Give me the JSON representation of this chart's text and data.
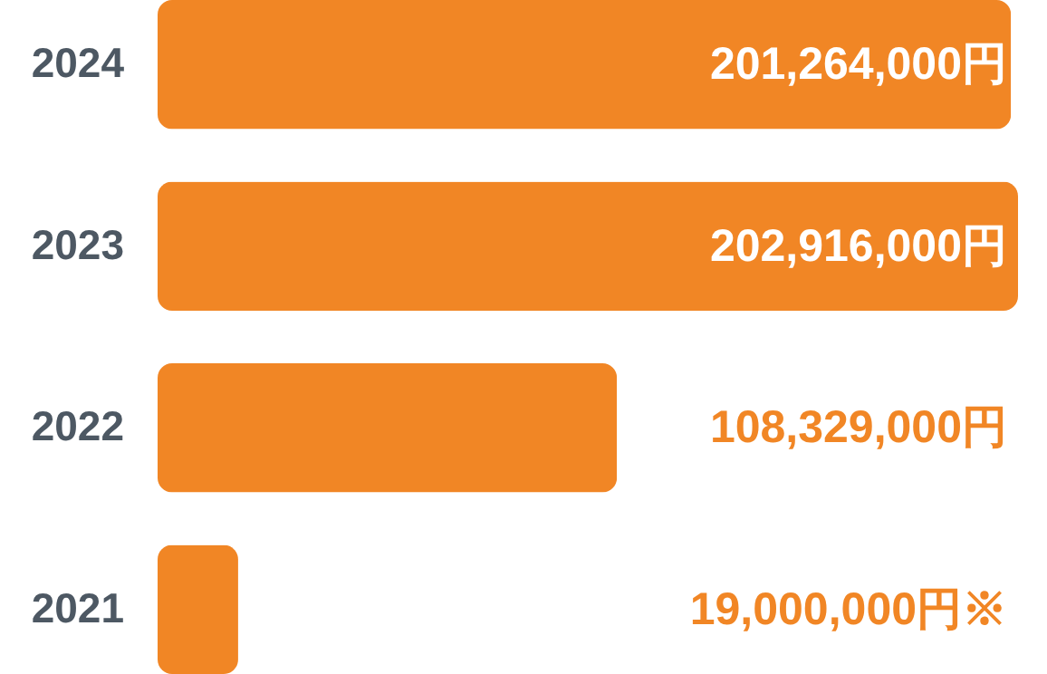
{
  "chart_data": {
    "type": "bar",
    "orientation": "horizontal",
    "categories": [
      "2024",
      "2023",
      "2022",
      "2021"
    ],
    "values": [
      201264000,
      202916000,
      108329000,
      19000000
    ],
    "value_labels": [
      "201,264,000円",
      "202,916,000円",
      "108,329,000円",
      "19,000,000円※"
    ],
    "color": "#f18625"
  }
}
